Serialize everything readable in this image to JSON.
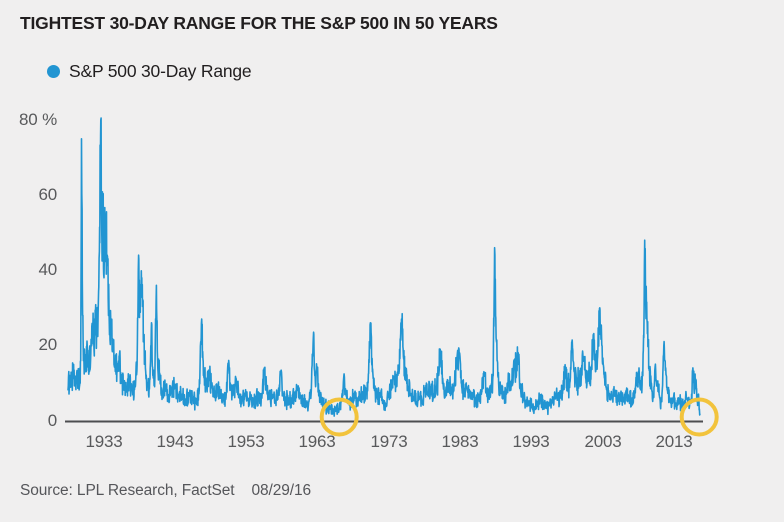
{
  "title": "TIGHTEST 30-DAY RANGE FOR THE S&P 500 IN 50 YEARS",
  "legend": {
    "label": "S&P 500 30-Day Range"
  },
  "source": {
    "label": "Source: LPL Research, FactSet",
    "date": "08/29/16"
  },
  "colors": {
    "series_blue": "#2295d2",
    "highlight_yellow": "#f2c33c",
    "axis_line": "#4d4e50",
    "tick_text": "#58595b",
    "background": "#f0efef"
  },
  "chart_data": {
    "type": "line",
    "title": "TIGHTEST 30-DAY RANGE FOR THE S&P 500 IN 50 YEARS",
    "series_name": "S&P 500 30-Day Range",
    "xlabel": "",
    "ylabel": "",
    "y_unit": "%",
    "x_domain": [
      1928,
      2016.66
    ],
    "ylim": [
      0,
      80
    ],
    "grid": false,
    "legend_position": "top-left",
    "xticks": [
      1933,
      1943,
      1953,
      1963,
      1973,
      1983,
      1993,
      2003,
      2013
    ],
    "yticks": [
      {
        "value": 80,
        "label": "80 %"
      },
      {
        "value": 60,
        "label": "60"
      },
      {
        "value": 40,
        "label": "40"
      },
      {
        "value": 20,
        "label": "20"
      },
      {
        "value": 0,
        "label": "0"
      }
    ],
    "annotations": [
      {
        "shape": "circle",
        "x": 1966.05,
        "y": 2
      },
      {
        "shape": "circle",
        "x": 2016.55,
        "y": 2
      }
    ],
    "points": [
      [
        1928.0,
        8
      ],
      [
        1928.25,
        12
      ],
      [
        1928.5,
        9
      ],
      [
        1928.75,
        14
      ],
      [
        1929.0,
        10
      ],
      [
        1929.3,
        12
      ],
      [
        1929.6,
        9
      ],
      [
        1929.78,
        16
      ],
      [
        1929.9,
        75
      ],
      [
        1930.05,
        28
      ],
      [
        1930.2,
        16
      ],
      [
        1930.45,
        13
      ],
      [
        1930.7,
        20
      ],
      [
        1930.95,
        13
      ],
      [
        1931.2,
        18
      ],
      [
        1931.45,
        25
      ],
      [
        1931.65,
        19
      ],
      [
        1931.85,
        28
      ],
      [
        1932.05,
        24
      ],
      [
        1932.25,
        31
      ],
      [
        1932.4,
        45
      ],
      [
        1932.6,
        80
      ],
      [
        1932.75,
        48
      ],
      [
        1932.9,
        59
      ],
      [
        1933.05,
        38
      ],
      [
        1933.3,
        55
      ],
      [
        1933.5,
        44
      ],
      [
        1933.75,
        30
      ],
      [
        1934.0,
        26
      ],
      [
        1934.3,
        20
      ],
      [
        1934.6,
        15
      ],
      [
        1934.9,
        13
      ],
      [
        1935.2,
        17
      ],
      [
        1935.5,
        12
      ],
      [
        1935.8,
        9
      ],
      [
        1936.2,
        8
      ],
      [
        1936.6,
        10
      ],
      [
        1937.0,
        8
      ],
      [
        1937.4,
        9
      ],
      [
        1937.7,
        15
      ],
      [
        1937.9,
        44
      ],
      [
        1938.1,
        30
      ],
      [
        1938.35,
        38
      ],
      [
        1938.6,
        22
      ],
      [
        1938.9,
        13
      ],
      [
        1939.2,
        9
      ],
      [
        1939.5,
        11
      ],
      [
        1939.72,
        26
      ],
      [
        1939.9,
        12
      ],
      [
        1940.15,
        9
      ],
      [
        1940.4,
        36
      ],
      [
        1940.6,
        14
      ],
      [
        1940.9,
        11
      ],
      [
        1941.3,
        7
      ],
      [
        1941.7,
        9
      ],
      [
        1942.1,
        6
      ],
      [
        1942.5,
        8
      ],
      [
        1943.0,
        9
      ],
      [
        1943.5,
        6
      ],
      [
        1944.0,
        7
      ],
      [
        1944.5,
        5
      ],
      [
        1945.0,
        7
      ],
      [
        1945.5,
        6
      ],
      [
        1946.0,
        5
      ],
      [
        1946.4,
        8
      ],
      [
        1946.75,
        27
      ],
      [
        1947.0,
        12
      ],
      [
        1947.4,
        9
      ],
      [
        1947.8,
        13
      ],
      [
        1948.2,
        10
      ],
      [
        1948.6,
        7
      ],
      [
        1949.0,
        9
      ],
      [
        1949.4,
        7
      ],
      [
        1949.8,
        6
      ],
      [
        1950.2,
        7
      ],
      [
        1950.55,
        16
      ],
      [
        1950.8,
        9
      ],
      [
        1951.2,
        8
      ],
      [
        1951.6,
        11
      ],
      [
        1952.0,
        6
      ],
      [
        1952.4,
        5
      ],
      [
        1952.8,
        7
      ],
      [
        1953.2,
        6
      ],
      [
        1953.6,
        7
      ],
      [
        1954.0,
        5
      ],
      [
        1954.4,
        6
      ],
      [
        1954.8,
        7
      ],
      [
        1955.2,
        6
      ],
      [
        1955.55,
        14
      ],
      [
        1955.9,
        8
      ],
      [
        1956.3,
        7
      ],
      [
        1956.7,
        6
      ],
      [
        1957.1,
        5
      ],
      [
        1957.5,
        7
      ],
      [
        1957.8,
        13
      ],
      [
        1958.1,
        7
      ],
      [
        1958.5,
        5
      ],
      [
        1959.0,
        6
      ],
      [
        1959.4,
        5
      ],
      [
        1959.8,
        7
      ],
      [
        1960.2,
        8
      ],
      [
        1960.6,
        6
      ],
      [
        1961.0,
        5
      ],
      [
        1961.4,
        4
      ],
      [
        1961.8,
        5
      ],
      [
        1962.1,
        7
      ],
      [
        1962.45,
        23.5
      ],
      [
        1962.7,
        10
      ],
      [
        1962.9,
        14
      ],
      [
        1963.2,
        7
      ],
      [
        1963.6,
        5
      ],
      [
        1964.0,
        4
      ],
      [
        1964.4,
        3.5
      ],
      [
        1964.8,
        3
      ],
      [
        1965.2,
        2.5
      ],
      [
        1965.6,
        3
      ],
      [
        1966.0,
        2.5
      ],
      [
        1966.35,
        5
      ],
      [
        1966.7,
        12
      ],
      [
        1967.0,
        7
      ],
      [
        1967.4,
        5
      ],
      [
        1967.8,
        6
      ],
      [
        1968.2,
        7
      ],
      [
        1968.6,
        5
      ],
      [
        1969.0,
        6
      ],
      [
        1969.4,
        7
      ],
      [
        1969.8,
        8
      ],
      [
        1970.1,
        10
      ],
      [
        1970.42,
        26
      ],
      [
        1970.7,
        13
      ],
      [
        1971.0,
        8
      ],
      [
        1971.4,
        6
      ],
      [
        1971.8,
        7
      ],
      [
        1972.2,
        5
      ],
      [
        1972.6,
        4
      ],
      [
        1973.0,
        7
      ],
      [
        1973.4,
        9
      ],
      [
        1973.8,
        11
      ],
      [
        1974.1,
        9
      ],
      [
        1974.45,
        13
      ],
      [
        1974.78,
        27
      ],
      [
        1975.05,
        17
      ],
      [
        1975.35,
        12
      ],
      [
        1975.7,
        9
      ],
      [
        1976.1,
        7
      ],
      [
        1976.5,
        6
      ],
      [
        1976.9,
        5
      ],
      [
        1977.3,
        6
      ],
      [
        1977.7,
        5
      ],
      [
        1978.1,
        8
      ],
      [
        1978.5,
        7
      ],
      [
        1978.9,
        9
      ],
      [
        1979.3,
        7
      ],
      [
        1979.7,
        9
      ],
      [
        1980.0,
        12
      ],
      [
        1980.25,
        18
      ],
      [
        1980.6,
        10
      ],
      [
        1981.0,
        8
      ],
      [
        1981.4,
        9
      ],
      [
        1981.8,
        8
      ],
      [
        1982.2,
        10
      ],
      [
        1982.55,
        15
      ],
      [
        1982.85,
        19
      ],
      [
        1983.2,
        10
      ],
      [
        1983.6,
        7
      ],
      [
        1984.0,
        8
      ],
      [
        1984.4,
        6
      ],
      [
        1984.8,
        7
      ],
      [
        1985.2,
        5
      ],
      [
        1985.6,
        6
      ],
      [
        1986.0,
        7
      ],
      [
        1986.35,
        13
      ],
      [
        1986.7,
        8
      ],
      [
        1987.0,
        7
      ],
      [
        1987.35,
        9
      ],
      [
        1987.65,
        12
      ],
      [
        1987.85,
        46
      ],
      [
        1988.05,
        22
      ],
      [
        1988.3,
        12
      ],
      [
        1988.7,
        8
      ],
      [
        1989.1,
        6
      ],
      [
        1989.5,
        7
      ],
      [
        1989.8,
        12
      ],
      [
        1990.1,
        8
      ],
      [
        1990.65,
        16
      ],
      [
        1990.9,
        12
      ],
      [
        1991.15,
        18
      ],
      [
        1991.5,
        8
      ],
      [
        1991.9,
        6
      ],
      [
        1992.3,
        5
      ],
      [
        1992.7,
        4
      ],
      [
        1993.1,
        4
      ],
      [
        1993.5,
        3.5
      ],
      [
        1993.9,
        4
      ],
      [
        1994.3,
        6
      ],
      [
        1994.7,
        4
      ],
      [
        1995.1,
        3.5
      ],
      [
        1995.5,
        4
      ],
      [
        1995.9,
        5
      ],
      [
        1996.3,
        7
      ],
      [
        1996.7,
        6
      ],
      [
        1997.1,
        7
      ],
      [
        1997.45,
        9
      ],
      [
        1997.8,
        14
      ],
      [
        1998.1,
        9
      ],
      [
        1998.4,
        10
      ],
      [
        1998.7,
        21
      ],
      [
        1999.0,
        13
      ],
      [
        1999.3,
        11
      ],
      [
        1999.7,
        10
      ],
      [
        2000.0,
        11
      ],
      [
        2000.3,
        17
      ],
      [
        2000.65,
        11
      ],
      [
        2001.0,
        13
      ],
      [
        2001.35,
        11
      ],
      [
        2001.72,
        23
      ],
      [
        2002.0,
        13
      ],
      [
        2002.3,
        17
      ],
      [
        2002.6,
        30
      ],
      [
        2002.85,
        22
      ],
      [
        2003.15,
        14
      ],
      [
        2003.5,
        9
      ],
      [
        2003.9,
        7
      ],
      [
        2004.3,
        6
      ],
      [
        2004.7,
        7
      ],
      [
        2005.1,
        5
      ],
      [
        2005.5,
        7
      ],
      [
        2005.9,
        5
      ],
      [
        2006.3,
        8
      ],
      [
        2006.7,
        6
      ],
      [
        2007.1,
        5
      ],
      [
        2007.45,
        7
      ],
      [
        2007.65,
        10
      ],
      [
        2007.9,
        9
      ],
      [
        2008.1,
        14
      ],
      [
        2008.4,
        9
      ],
      [
        2008.6,
        12
      ],
      [
        2008.78,
        22
      ],
      [
        2008.9,
        48
      ],
      [
        2009.05,
        30
      ],
      [
        2009.25,
        26
      ],
      [
        2009.5,
        14
      ],
      [
        2009.8,
        10
      ],
      [
        2010.1,
        6
      ],
      [
        2010.4,
        15
      ],
      [
        2010.7,
        10
      ],
      [
        2011.0,
        6
      ],
      [
        2011.3,
        5
      ],
      [
        2011.62,
        21
      ],
      [
        2011.85,
        14
      ],
      [
        2012.1,
        8
      ],
      [
        2012.5,
        5
      ],
      [
        2012.9,
        6
      ],
      [
        2013.3,
        4
      ],
      [
        2013.7,
        5
      ],
      [
        2014.1,
        4
      ],
      [
        2014.5,
        5
      ],
      [
        2014.9,
        6
      ],
      [
        2015.2,
        4
      ],
      [
        2015.45,
        5
      ],
      [
        2015.67,
        14
      ],
      [
        2015.9,
        8
      ],
      [
        2016.05,
        11
      ],
      [
        2016.25,
        5
      ],
      [
        2016.45,
        7
      ],
      [
        2016.58,
        3
      ],
      [
        2016.66,
        1.8
      ]
    ]
  }
}
